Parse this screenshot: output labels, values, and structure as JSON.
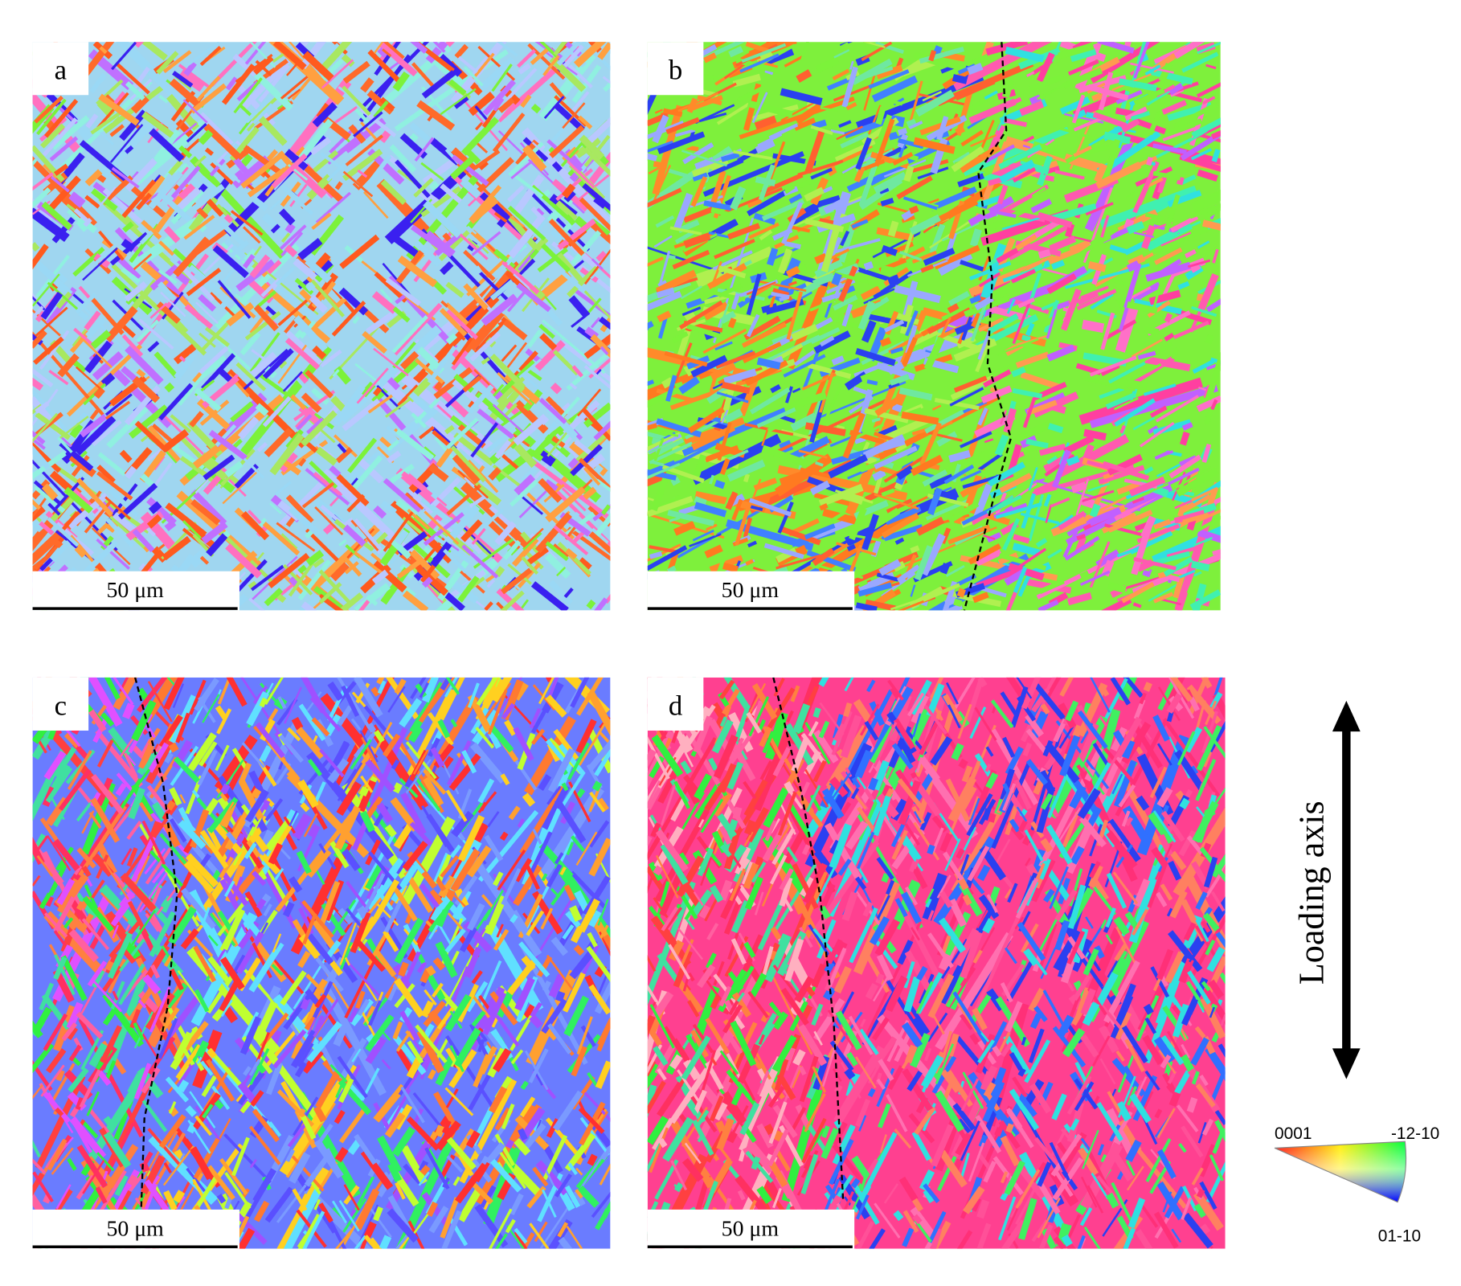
{
  "panels": [
    {
      "label": "a",
      "scale_bar": "50 μm"
    },
    {
      "label": "b",
      "scale_bar": "50 μm"
    },
    {
      "label": "c",
      "scale_bar": "50 μm"
    },
    {
      "label": "d",
      "scale_bar": "50 μm"
    }
  ],
  "loading_axis": "Loading axis",
  "ipf_legend": {
    "labels": [
      "0001",
      "-12-10",
      "01-10"
    ]
  }
}
